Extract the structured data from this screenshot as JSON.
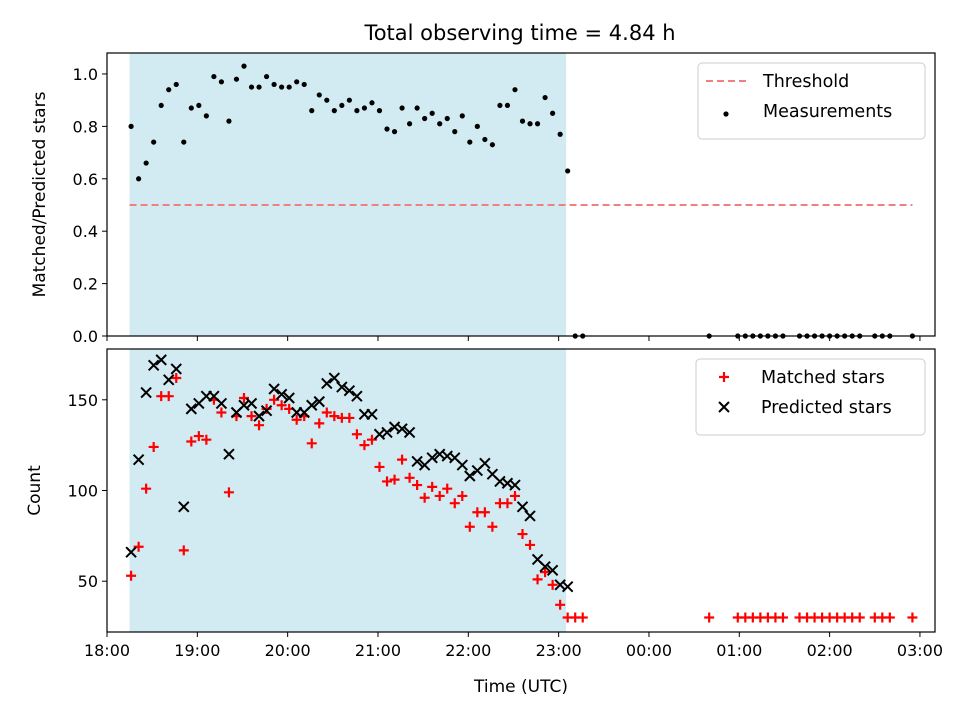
{
  "chart_data": [
    {
      "type": "scatter",
      "title": "Total observing time = 4.84 h",
      "xlabel": "",
      "ylabel": "Matched/Predicted stars",
      "xlim": [
        "18:00",
        "03:10"
      ],
      "ylim": [
        0,
        1.08
      ],
      "grid": false,
      "legend_position": "upper right",
      "x_ticks": [
        "18:00",
        "19:00",
        "20:00",
        "21:00",
        "22:00",
        "23:00",
        "00:00",
        "01:00",
        "02:00",
        "03:00"
      ],
      "y_ticks": [
        "0.0",
        "0.2",
        "0.4",
        "0.6",
        "0.8",
        "1.0"
      ],
      "shaded_span": {
        "start": "18:15",
        "end": "23:05",
        "color": "#add8e6"
      },
      "threshold": {
        "name": "Threshold",
        "value": 0.5,
        "x_start": "18:15",
        "x_end": "02:55",
        "color": "#f08080",
        "style": "dashed"
      },
      "series": [
        {
          "name": "Measurements",
          "marker": "dot",
          "color": "#000000",
          "points": [
            [
              "18:16",
              0.8
            ],
            [
              "18:21",
              0.6
            ],
            [
              "18:26",
              0.66
            ],
            [
              "18:31",
              0.74
            ],
            [
              "18:36",
              0.88
            ],
            [
              "18:41",
              0.94
            ],
            [
              "18:46",
              0.96
            ],
            [
              "18:51",
              0.74
            ],
            [
              "18:56",
              0.87
            ],
            [
              "19:01",
              0.88
            ],
            [
              "19:06",
              0.84
            ],
            [
              "19:11",
              0.99
            ],
            [
              "19:16",
              0.97
            ],
            [
              "19:21",
              0.82
            ],
            [
              "19:26",
              0.98
            ],
            [
              "19:31",
              1.03
            ],
            [
              "19:36",
              0.95
            ],
            [
              "19:41",
              0.95
            ],
            [
              "19:46",
              0.99
            ],
            [
              "19:51",
              0.96
            ],
            [
              "19:56",
              0.95
            ],
            [
              "20:01",
              0.95
            ],
            [
              "20:06",
              0.97
            ],
            [
              "20:11",
              0.96
            ],
            [
              "20:16",
              0.86
            ],
            [
              "20:21",
              0.92
            ],
            [
              "20:26",
              0.9
            ],
            [
              "20:31",
              0.86
            ],
            [
              "20:36",
              0.88
            ],
            [
              "20:41",
              0.9
            ],
            [
              "20:46",
              0.86
            ],
            [
              "20:51",
              0.87
            ],
            [
              "20:56",
              0.89
            ],
            [
              "21:01",
              0.86
            ],
            [
              "21:06",
              0.79
            ],
            [
              "21:11",
              0.78
            ],
            [
              "21:16",
              0.87
            ],
            [
              "21:21",
              0.81
            ],
            [
              "21:26",
              0.87
            ],
            [
              "21:31",
              0.83
            ],
            [
              "21:36",
              0.85
            ],
            [
              "21:41",
              0.81
            ],
            [
              "21:46",
              0.83
            ],
            [
              "21:51",
              0.78
            ],
            [
              "21:56",
              0.84
            ],
            [
              "22:01",
              0.74
            ],
            [
              "22:06",
              0.8
            ],
            [
              "22:11",
              0.75
            ],
            [
              "22:16",
              0.73
            ],
            [
              "22:21",
              0.88
            ],
            [
              "22:26",
              0.88
            ],
            [
              "22:31",
              0.94
            ],
            [
              "22:36",
              0.82
            ],
            [
              "22:41",
              0.81
            ],
            [
              "22:46",
              0.81
            ],
            [
              "22:51",
              0.91
            ],
            [
              "22:56",
              0.85
            ],
            [
              "23:01",
              0.77
            ],
            [
              "23:06",
              0.63
            ],
            [
              "23:11",
              0.0
            ],
            [
              "23:16",
              0.0
            ],
            [
              "00:40",
              0.0
            ],
            [
              "00:59",
              0.0
            ],
            [
              "01:04",
              0.0
            ],
            [
              "01:09",
              0.0
            ],
            [
              "01:14",
              0.0
            ],
            [
              "01:19",
              0.0
            ],
            [
              "01:24",
              0.0
            ],
            [
              "01:29",
              0.0
            ],
            [
              "01:40",
              0.0
            ],
            [
              "01:45",
              0.0
            ],
            [
              "01:50",
              0.0
            ],
            [
              "01:55",
              0.0
            ],
            [
              "02:00",
              0.0
            ],
            [
              "02:05",
              0.0
            ],
            [
              "02:10",
              0.0
            ],
            [
              "02:15",
              0.0
            ],
            [
              "02:20",
              0.0
            ],
            [
              "02:30",
              0.0
            ],
            [
              "02:35",
              0.0
            ],
            [
              "02:40",
              0.0
            ],
            [
              "02:55",
              0.0
            ]
          ]
        }
      ]
    },
    {
      "type": "scatter",
      "title": "",
      "xlabel": "Time (UTC)",
      "ylabel": "Count",
      "xlim": [
        "18:00",
        "03:10"
      ],
      "ylim": [
        22,
        178
      ],
      "grid": false,
      "legend_position": "upper right",
      "x_ticks": [
        "18:00",
        "19:00",
        "20:00",
        "21:00",
        "22:00",
        "23:00",
        "00:00",
        "01:00",
        "02:00",
        "03:00"
      ],
      "y_ticks": [
        "50",
        "100",
        "150"
      ],
      "shaded_span": {
        "start": "18:15",
        "end": "23:05",
        "color": "#add8e6"
      },
      "series": [
        {
          "name": "Matched stars",
          "marker": "plus",
          "color": "#ff0000",
          "points": [
            [
              "18:16",
              53
            ],
            [
              "18:21",
              69
            ],
            [
              "18:26",
              101
            ],
            [
              "18:31",
              124
            ],
            [
              "18:36",
              152
            ],
            [
              "18:41",
              152
            ],
            [
              "18:46",
              162
            ],
            [
              "18:51",
              67
            ],
            [
              "18:56",
              127
            ],
            [
              "19:01",
              130
            ],
            [
              "19:06",
              128
            ],
            [
              "19:11",
              150
            ],
            [
              "19:16",
              143
            ],
            [
              "19:21",
              99
            ],
            [
              "19:26",
              141
            ],
            [
              "19:31",
              151
            ],
            [
              "19:36",
              141
            ],
            [
              "19:41",
              136
            ],
            [
              "19:46",
              145
            ],
            [
              "19:51",
              150
            ],
            [
              "19:56",
              147
            ],
            [
              "20:01",
              145
            ],
            [
              "20:06",
              139
            ],
            [
              "20:11",
              141
            ],
            [
              "20:16",
              126
            ],
            [
              "20:21",
              137
            ],
            [
              "20:26",
              143
            ],
            [
              "20:31",
              141
            ],
            [
              "20:36",
              140
            ],
            [
              "20:41",
              140
            ],
            [
              "20:46",
              131
            ],
            [
              "20:51",
              125
            ],
            [
              "20:56",
              128
            ],
            [
              "21:01",
              113
            ],
            [
              "21:06",
              105
            ],
            [
              "21:11",
              106
            ],
            [
              "21:16",
              117
            ],
            [
              "21:21",
              107
            ],
            [
              "21:26",
              103
            ],
            [
              "21:31",
              96
            ],
            [
              "21:36",
              102
            ],
            [
              "21:41",
              97
            ],
            [
              "21:46",
              101
            ],
            [
              "21:51",
              93
            ],
            [
              "21:56",
              97
            ],
            [
              "22:01",
              80
            ],
            [
              "22:06",
              88
            ],
            [
              "22:11",
              88
            ],
            [
              "22:16",
              80
            ],
            [
              "22:21",
              93
            ],
            [
              "22:26",
              93
            ],
            [
              "22:31",
              97
            ],
            [
              "22:36",
              76
            ],
            [
              "22:41",
              70
            ],
            [
              "22:46",
              51
            ],
            [
              "22:51",
              55
            ],
            [
              "22:56",
              48
            ],
            [
              "23:01",
              37
            ],
            [
              "23:06",
              30
            ],
            [
              "23:11",
              30
            ],
            [
              "23:16",
              30
            ],
            [
              "00:40",
              30
            ],
            [
              "00:59",
              30
            ],
            [
              "01:04",
              30
            ],
            [
              "01:09",
              30
            ],
            [
              "01:14",
              30
            ],
            [
              "01:19",
              30
            ],
            [
              "01:24",
              30
            ],
            [
              "01:29",
              30
            ],
            [
              "01:40",
              30
            ],
            [
              "01:45",
              30
            ],
            [
              "01:50",
              30
            ],
            [
              "01:55",
              30
            ],
            [
              "02:00",
              30
            ],
            [
              "02:05",
              30
            ],
            [
              "02:10",
              30
            ],
            [
              "02:15",
              30
            ],
            [
              "02:20",
              30
            ],
            [
              "02:30",
              30
            ],
            [
              "02:35",
              30
            ],
            [
              "02:40",
              30
            ],
            [
              "02:55",
              30
            ]
          ]
        },
        {
          "name": "Predicted stars",
          "marker": "x",
          "color": "#000000",
          "points": [
            [
              "18:16",
              66
            ],
            [
              "18:21",
              117
            ],
            [
              "18:26",
              154
            ],
            [
              "18:31",
              169
            ],
            [
              "18:36",
              172
            ],
            [
              "18:41",
              161
            ],
            [
              "18:46",
              167
            ],
            [
              "18:51",
              91
            ],
            [
              "18:56",
              145
            ],
            [
              "19:01",
              148
            ],
            [
              "19:06",
              152
            ],
            [
              "19:11",
              152
            ],
            [
              "19:16",
              148
            ],
            [
              "19:21",
              120
            ],
            [
              "19:26",
              143
            ],
            [
              "19:31",
              147
            ],
            [
              "19:36",
              148
            ],
            [
              "19:41",
              141
            ],
            [
              "19:46",
              144
            ],
            [
              "19:51",
              156
            ],
            [
              "19:56",
              153
            ],
            [
              "20:01",
              151
            ],
            [
              "20:06",
              143
            ],
            [
              "20:11",
              143
            ],
            [
              "20:16",
              147
            ],
            [
              "20:21",
              149
            ],
            [
              "20:26",
              159
            ],
            [
              "20:31",
              162
            ],
            [
              "20:36",
              157
            ],
            [
              "20:41",
              155
            ],
            [
              "20:46",
              152
            ],
            [
              "20:51",
              142
            ],
            [
              "20:56",
              142
            ],
            [
              "21:01",
              131
            ],
            [
              "21:06",
              132
            ],
            [
              "21:11",
              135
            ],
            [
              "21:16",
              134
            ],
            [
              "21:21",
              132
            ],
            [
              "21:26",
              116
            ],
            [
              "21:31",
              114
            ],
            [
              "21:36",
              118
            ],
            [
              "21:41",
              120
            ],
            [
              "21:46",
              119
            ],
            [
              "21:51",
              118
            ],
            [
              "21:56",
              114
            ],
            [
              "22:01",
              108
            ],
            [
              "22:06",
              111
            ],
            [
              "22:11",
              115
            ],
            [
              "22:16",
              109
            ],
            [
              "22:21",
              105
            ],
            [
              "22:26",
              104
            ],
            [
              "22:31",
              103
            ],
            [
              "22:36",
              91
            ],
            [
              "22:41",
              86
            ],
            [
              "22:46",
              62
            ],
            [
              "22:51",
              58
            ],
            [
              "22:56",
              56
            ],
            [
              "23:01",
              48
            ],
            [
              "23:06",
              47
            ]
          ]
        }
      ]
    }
  ]
}
